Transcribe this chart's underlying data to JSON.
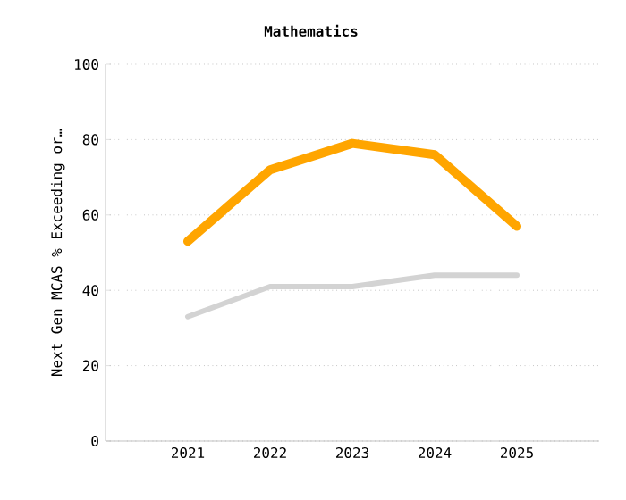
{
  "chart_data": {
    "type": "line",
    "title": "Mathematics",
    "ylabel": "Next Gen MCAS % Exceeding or…",
    "categories": [
      "2021",
      "2022",
      "2023",
      "2024",
      "2025"
    ],
    "series": [
      {
        "color": "#ffa500",
        "values": [
          53,
          72,
          79,
          76,
          57
        ]
      },
      {
        "color": "#d3d3d3",
        "values": [
          33,
          41,
          41,
          44,
          44
        ]
      }
    ],
    "ylim": [
      0,
      100
    ],
    "yticks": [
      0,
      20,
      40,
      60,
      80,
      100
    ],
    "grid": "y",
    "marker": "none",
    "line_style": "solid"
  }
}
